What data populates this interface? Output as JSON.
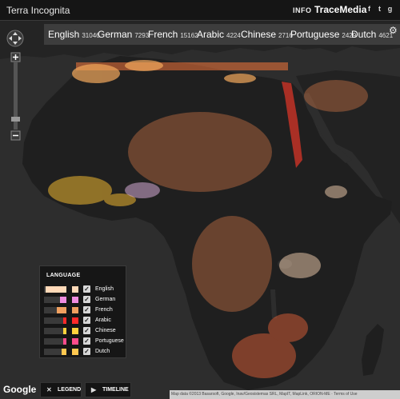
{
  "app": {
    "title": "Terra Incognita",
    "info_label": "INFO",
    "brand": "TraceMedia"
  },
  "social": [
    {
      "name": "facebook-icon",
      "glyph": "f"
    },
    {
      "name": "twitter-icon",
      "glyph": "t"
    },
    {
      "name": "google-plus-icon",
      "glyph": "g"
    }
  ],
  "languages": [
    {
      "name": "English",
      "count": "31046"
    },
    {
      "name": "German",
      "count": "7293"
    },
    {
      "name": "French",
      "count": "15162"
    },
    {
      "name": "Arabic",
      "count": "4224"
    },
    {
      "name": "Chinese",
      "count": "2716"
    },
    {
      "name": "Portuguese",
      "count": "2429"
    },
    {
      "name": "Dutch",
      "count": "4621"
    }
  ],
  "legend": {
    "title": "LANGUAGE",
    "items": [
      {
        "label": "English",
        "color": "#ffd9b8",
        "checked": true
      },
      {
        "label": "German",
        "color": "#f08ce0",
        "checked": true
      },
      {
        "label": "French",
        "color": "#f0a060",
        "checked": true
      },
      {
        "label": "Arabic",
        "color": "#ff2a2a",
        "checked": true
      },
      {
        "label": "Chinese",
        "color": "#ffd23c",
        "checked": true
      },
      {
        "label": "Portuguese",
        "color": "#ff4c8c",
        "checked": true
      },
      {
        "label": "Dutch",
        "color": "#ffc850",
        "checked": true
      }
    ]
  },
  "buttons": {
    "legend": "LEGEND",
    "timeline": "TIMELINE"
  },
  "map": {
    "provider": "Google",
    "attribution": "Map data ©2013 Basarsoft, Google, Inav/Geosistemas SRL, MapIT, MapLink, ORION-ME  ·  Terms of Use",
    "land_color": "#202020",
    "water_color": "#2d2d2d"
  }
}
